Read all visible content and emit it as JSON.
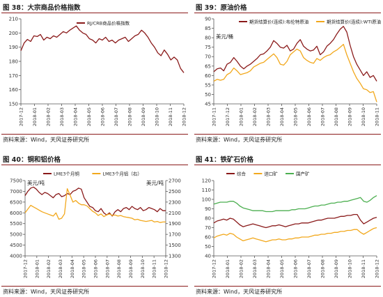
{
  "colors": {
    "accent": "#8a1a1a",
    "orange": "#f2a81c"
  },
  "panels": [
    {
      "title": "图 38：大宗商品价格指数",
      "source": "资料来源：Wind，天风证券研究所",
      "chart_data": {
        "type": "line",
        "ylim": [
          150,
          210
        ],
        "yticks": [
          150,
          160,
          170,
          180,
          190,
          200,
          210
        ],
        "xticks": [
          "2017-12",
          "2018-01",
          "2018-02",
          "2018-03",
          "2018-04",
          "2018-05",
          "2018-06",
          "2018-07",
          "2018-08",
          "2018-09",
          "2018-10",
          "2018-11",
          "2018-12"
        ],
        "legend": "top-center",
        "series": [
          {
            "name": "RJ/CRB商品价格指数",
            "color": "#8a1a1a",
            "values": [
              187.5,
              193,
              195.5,
              194,
              198,
              197.5,
              199,
              195,
              197,
              196,
              198,
              197,
              199,
              201,
              200,
              202,
              203.5,
              205,
              202,
              200,
              199,
              196,
              195,
              193,
              196,
              195,
              197,
              194,
              195,
              193,
              195,
              196,
              197,
              194,
              196,
              198,
              199,
              202,
              200,
              197,
              193,
              190,
              186,
              184,
              188,
              185,
              181,
              183,
              181,
              175,
              172
            ]
          }
        ]
      }
    },
    {
      "title": "图 39：原油价格",
      "source": "资料来源：Wind，天风证券研究所",
      "chart_data": {
        "type": "line",
        "ylim": [
          45,
          90
        ],
        "yticks": [
          45,
          50,
          55,
          60,
          65,
          70,
          75,
          80,
          85,
          90
        ],
        "xticks": [
          "2017-11",
          "2017-12",
          "2018-01",
          "2018-02",
          "2018-03",
          "2018-04",
          "2018-05",
          "2018-06",
          "2018-07",
          "2018-08",
          "2018-09",
          "2018-10",
          "2018-11"
        ],
        "unit_label": "美元/桶",
        "legend": "top",
        "series": [
          {
            "name": "期货结算价(连续):布伦特原油",
            "color": "#8a1a1a",
            "values": [
              62,
              63.5,
              64,
              62.5,
              66,
              67,
              69.5,
              67.5,
              65,
              63.5,
              65,
              66,
              67.5,
              69,
              71,
              71.5,
              73,
              75,
              78.5,
              77,
              75,
              74.5,
              76,
              73,
              74,
              77,
              79,
              75.5,
              74,
              73,
              73.5,
              75.5,
              71,
              72.5,
              75.5,
              77,
              79,
              82,
              84.5,
              86,
              83,
              76,
              70,
              66,
              63,
              60,
              62,
              59,
              60,
              57
            ]
          },
          {
            "name": "期货结算价(连续):WTI原油",
            "color": "#f2a81c",
            "values": [
              57,
              58,
              57.5,
              58,
              60.5,
              61.5,
              64,
              62.5,
              60.5,
              61,
              61.5,
              62.5,
              64.5,
              65.5,
              66.5,
              67,
              68.5,
              70,
              71.5,
              69.5,
              66,
              65.5,
              67.5,
              71,
              72.5,
              74,
              73,
              69.5,
              68,
              67,
              66.5,
              69,
              68,
              69.5,
              70.5,
              71,
              72.5,
              73.5,
              75,
              76.5,
              71,
              66.5,
              62,
              58.5,
              56,
              53,
              52.5,
              51,
              51.5,
              46
            ]
          }
        ]
      }
    },
    {
      "title": "图 40：铜和铝价格",
      "source": "资料来源：Wind，天风证券研究所",
      "chart_data": {
        "type": "line",
        "ylim": [
          4000,
          7500
        ],
        "yticks": [
          4000,
          4500,
          5000,
          5500,
          6000,
          6500,
          7000,
          7500
        ],
        "ylim_right": [
          1300,
          2700
        ],
        "yticks_right": [
          1300,
          1500,
          1700,
          1900,
          2100,
          2300,
          2500,
          2700
        ],
        "xticks": [
          "2017-12",
          "2018-01",
          "2018-02",
          "2018-03",
          "2018-04",
          "2018-05",
          "2018-06",
          "2018-07",
          "2018-08",
          "2018-09",
          "2018-10",
          "2018-11",
          "2018-12"
        ],
        "unit_label": "美元/吨",
        "unit_label_right": "美元/吨",
        "legend": "top-center",
        "series": [
          {
            "name": "LME3个月铜",
            "color": "#8a1a1a",
            "axis": "left",
            "values": [
              6800,
              7000,
              7150,
              7200,
              7100,
              6950,
              6850,
              6950,
              6900,
              6800,
              6700,
              6850,
              6900,
              6750,
              6800,
              6900,
              6850,
              7000,
              7050,
              7150,
              7100,
              6700,
              6500,
              6300,
              6250,
              6100,
              6050,
              6200,
              6000,
              5900,
              6000,
              5850,
              6050,
              6150,
              6050,
              6200,
              6250,
              6150,
              6300,
              6200,
              6150,
              6250,
              6100,
              6150,
              6250,
              6200,
              6150,
              6050,
              6200,
              6100,
              6100
            ]
          },
          {
            "name": "LME3个月铝（右）",
            "color": "#f2a81c",
            "axis": "right",
            "values": [
              2100,
              2170,
              2240,
              2210,
              2180,
              2150,
              2120,
              2100,
              2080,
              2060,
              2040,
              2100,
              1980,
              2000,
              2080,
              2550,
              2430,
              2300,
              2330,
              2280,
              2250,
              2250,
              2230,
              2180,
              2130,
              2100,
              2050,
              2080,
              2030,
              2060,
              2080,
              2050,
              2060,
              2040,
              2050,
              2030,
              2020,
              2010,
              2000,
              1970,
              1980,
              1960,
              1950,
              1940,
              1950,
              1960,
              1930,
              1940,
              1920,
              1930,
              1930
            ]
          }
        ]
      }
    },
    {
      "title": "图 41：铁矿石价格",
      "source": "资料来源：Wind，天风证券研究所",
      "chart_data": {
        "type": "line",
        "ylim": [
          40,
          120
        ],
        "yticks": [
          40,
          50,
          60,
          70,
          80,
          90,
          100,
          110,
          120
        ],
        "xticks": [
          "2017-12",
          "2018-01",
          "2018-02",
          "2018-03",
          "2018-04",
          "2018-05",
          "2018-06",
          "2018-07",
          "2018-08",
          "2018-09",
          "2018-10",
          "2018-11",
          "2018-12"
        ],
        "legend": "top",
        "series": [
          {
            "name": "综合",
            "color": "#8a1a1a",
            "values": [
              75,
              77,
              78,
              79,
              78,
              80,
              79,
              76,
              73,
              71,
              72,
              73,
              74,
              73,
              72,
              71,
              70,
              71,
              72,
              72,
              73,
              72,
              71,
              72,
              73,
              74,
              74,
              75,
              75,
              75,
              76,
              77,
              78,
              78,
              79,
              80,
              80,
              80,
              81,
              82,
              82,
              83,
              83,
              84,
              84,
              78,
              74,
              76,
              78,
              80,
              81
            ]
          },
          {
            "name": "进口矿",
            "color": "#f2a81c",
            "values": [
              59,
              61,
              62,
              63,
              62,
              64,
              63,
              60,
              58,
              56,
              57,
              58,
              59,
              58,
              57,
              56,
              55,
              56,
              57,
              57,
              58,
              57,
              57,
              58,
              58,
              59,
              59,
              60,
              60,
              60,
              61,
              62,
              62,
              63,
              63,
              64,
              64,
              65,
              65,
              66,
              66,
              67,
              67,
              68,
              68,
              65,
              63,
              65,
              67,
              69,
              70
            ]
          },
          {
            "name": "国产矿",
            "color": "#4caf50",
            "values": [
              95,
              96,
              97,
              97,
              97,
              98,
              98,
              96,
              93,
              91,
              90,
              89,
              88,
              88,
              88,
              88,
              87,
              87,
              87,
              88,
              88,
              88,
              88,
              88,
              89,
              89,
              90,
              90,
              90,
              91,
              92,
              93,
              93,
              94,
              94,
              95,
              96,
              96,
              97,
              97,
              98,
              98,
              99,
              100,
              101,
              102,
              98,
              97,
              99,
              102,
              104
            ]
          }
        ]
      }
    }
  ]
}
